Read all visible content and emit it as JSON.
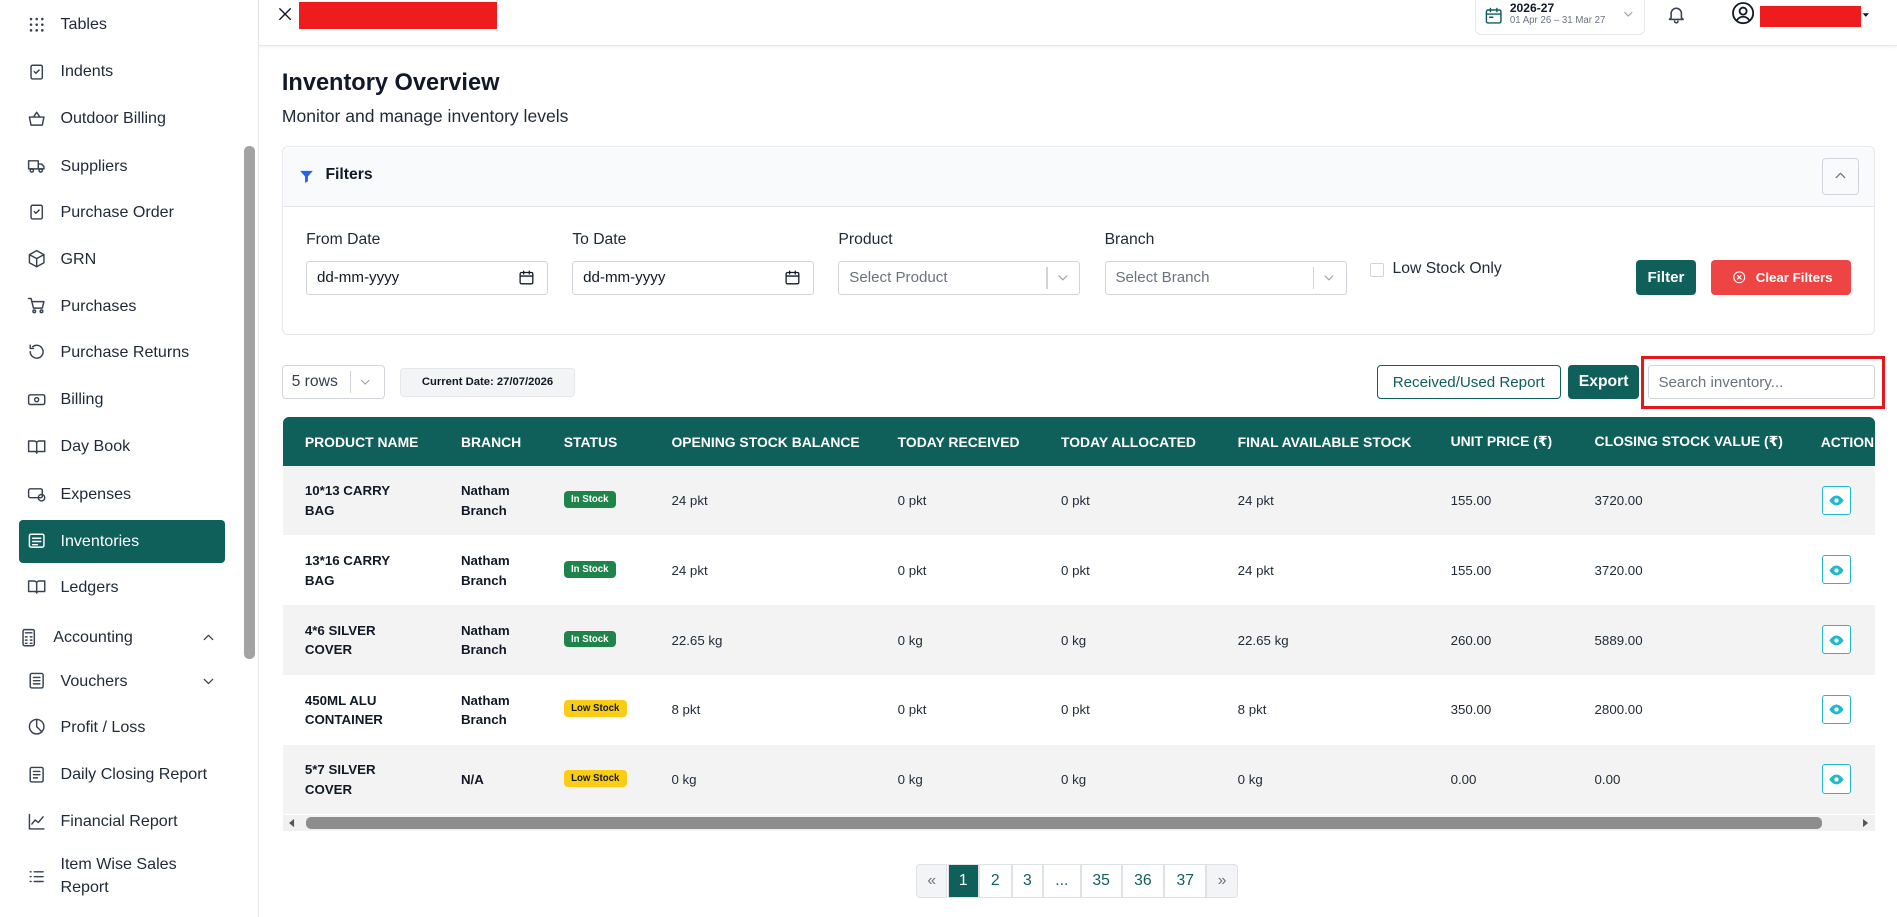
{
  "sidebar": {
    "items": [
      "Tables",
      "Indents",
      "Outdoor Billing",
      "Suppliers",
      "Purchase Order",
      "GRN",
      "Purchases",
      "Purchase Returns",
      "Billing",
      "Day Book",
      "Expenses",
      "Inventories",
      "Ledgers",
      "Accounting",
      "Vouchers",
      "Profit / Loss",
      "Daily Closing Report",
      "Financial Report",
      "Item Wise Sales Report"
    ]
  },
  "header": {
    "fiscal_year": "2026-27",
    "fiscal_range": "01 Apr 26 – 31 Mar 27"
  },
  "page": {
    "title": "Inventory Overview",
    "subtitle": "Monitor and manage inventory levels"
  },
  "filters": {
    "title": "Filters",
    "fields": [
      {
        "label": "From Date",
        "placeholder": "dd-mm-yyyy"
      },
      {
        "label": "To Date",
        "placeholder": "dd-mm-yyyy"
      },
      {
        "label": "Product",
        "placeholder": "Select Product"
      },
      {
        "label": "Branch",
        "placeholder": "Select Branch"
      }
    ],
    "low_stock": "Low Stock Only",
    "filter_button": "Filter",
    "clear_button": "Clear Filters"
  },
  "toolbar": {
    "rows": "5 rows",
    "current_date": "Current Date: 27/07/2026",
    "report_button": "Received/Used Report",
    "export_button": "Export",
    "search_placeholder": "Search inventory..."
  },
  "table": {
    "columns": [
      "PRODUCT NAME",
      "BRANCH",
      "STATUS",
      "OPENING STOCK BALANCE",
      "TODAY RECEIVED",
      "TODAY ALLOCATED",
      "FINAL AVAILABLE STOCK",
      "UNIT PRICE (₹)",
      "CLOSING STOCK VALUE (₹)",
      "ACTION"
    ],
    "rows": [
      [
        "10*13 CARRY BAG",
        "Natham Branch",
        "In Stock",
        "24 pkt",
        "0 pkt",
        "0 pkt",
        "24 pkt",
        "155.00",
        "3720.00"
      ],
      [
        "13*16 CARRY BAG",
        "Natham Branch",
        "In Stock",
        "24 pkt",
        "0 pkt",
        "0 pkt",
        "24 pkt",
        "155.00",
        "3720.00"
      ],
      [
        "4*6 SILVER COVER",
        "Natham Branch",
        "In Stock",
        "22.65 kg",
        "0 kg",
        "0 kg",
        "22.65 kg",
        "260.00",
        "5889.00"
      ],
      [
        "450ML ALU CONTAINER",
        "Natham Branch",
        "Low Stock",
        "8 pkt",
        "0 pkt",
        "0 pkt",
        "8 pkt",
        "350.00",
        "2800.00"
      ],
      [
        "5*7 SILVER COVER",
        "N/A",
        "Low Stock",
        "0 kg",
        "0 kg",
        "0 kg",
        "0 kg",
        "0.00",
        "0.00"
      ]
    ]
  },
  "pagination": [
    "«",
    "1",
    "2",
    "3",
    "...",
    "35",
    "36",
    "37",
    "»"
  ]
}
